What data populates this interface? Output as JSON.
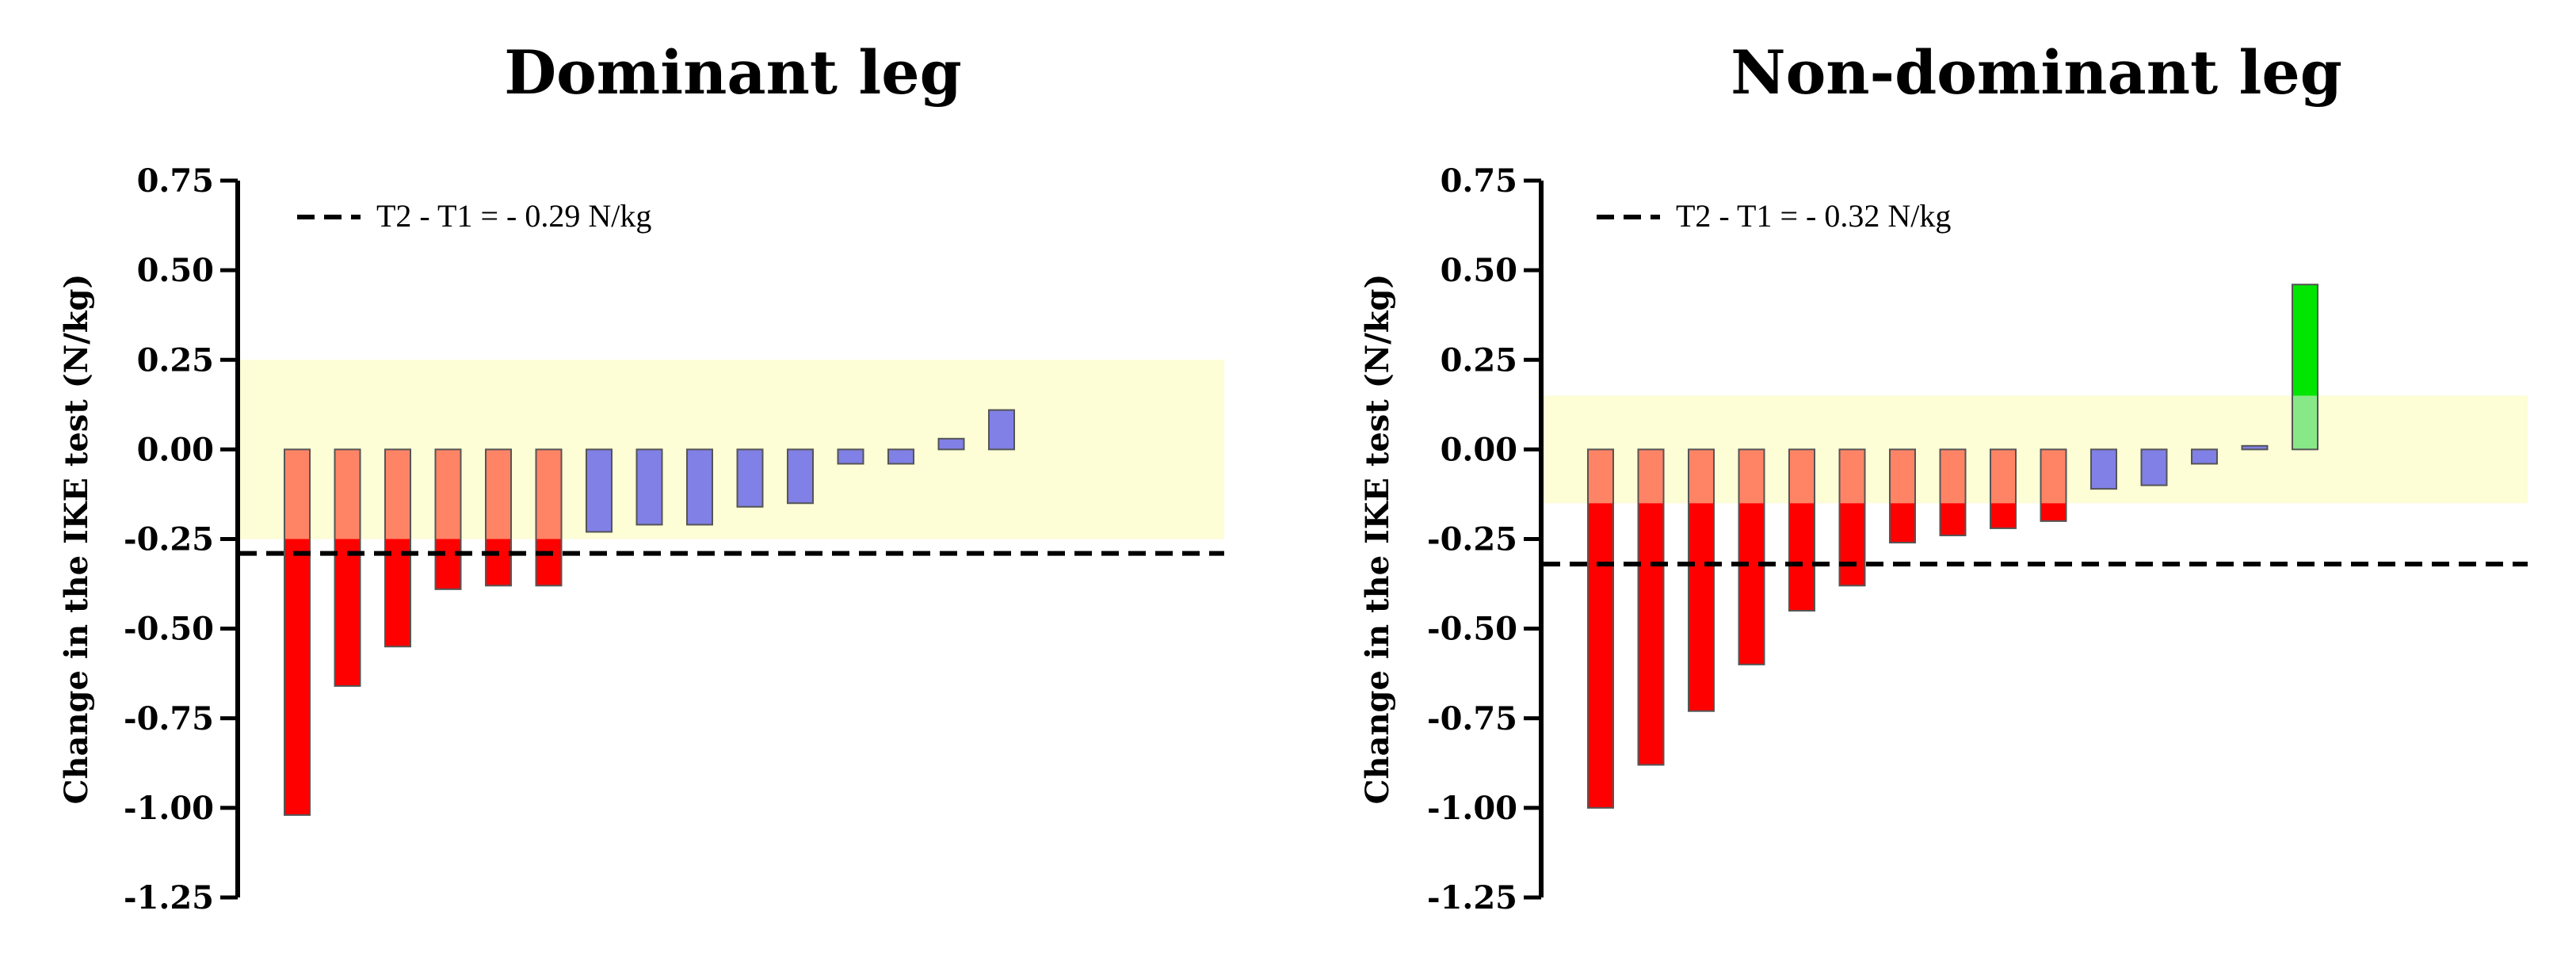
{
  "colors": {
    "band": "#fdfdd6",
    "below_band": "#ff0000",
    "inside_band_negative": "#ff8466",
    "inside_band_neutral": "#8080e6",
    "above_band": "#00e600",
    "inside_band_positive_overlay": "#88e888",
    "bar_stroke": "#555555"
  },
  "chart_data": [
    {
      "type": "bar",
      "title": "Dominant leg",
      "ylabel": "Change in the IKE test (N/kg)",
      "ylim": [
        -1.25,
        0.75
      ],
      "yticks": [
        "0.75",
        "0.50",
        "0.25",
        "0.00",
        "-0.25",
        "-0.50",
        "-0.75",
        "-1.00",
        "-1.25"
      ],
      "band": [
        -0.25,
        0.25
      ],
      "reference_line": {
        "value": -0.29,
        "label": "T2 - T1  = - 0.29 N/kg",
        "style": "dashed"
      },
      "legend_position": "top-left",
      "values": [
        -1.02,
        -0.66,
        -0.55,
        -0.39,
        -0.38,
        -0.38,
        -0.23,
        -0.21,
        -0.21,
        -0.16,
        -0.15,
        -0.04,
        -0.04,
        0.03,
        0.11
      ]
    },
    {
      "type": "bar",
      "title": "Non-dominant leg",
      "ylabel": "Change in the IKE test (N/kg)",
      "ylim": [
        -1.25,
        0.75
      ],
      "yticks": [
        "0.75",
        "0.50",
        "0.25",
        "0.00",
        "-0.25",
        "-0.50",
        "-0.75",
        "-1.00",
        "-1.25"
      ],
      "band": [
        -0.15,
        0.15
      ],
      "reference_line": {
        "value": -0.32,
        "label": "T2 - T1  = - 0.32 N/kg",
        "style": "dashed"
      },
      "legend_position": "top-left",
      "values": [
        -1.0,
        -0.88,
        -0.73,
        -0.6,
        -0.45,
        -0.38,
        -0.26,
        -0.24,
        -0.22,
        -0.2,
        -0.11,
        -0.1,
        -0.04,
        0.01,
        0.46
      ]
    }
  ]
}
